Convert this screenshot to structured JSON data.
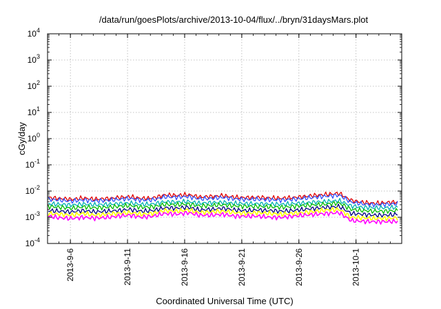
{
  "chart_data": {
    "type": "line",
    "title": "/data/run/goesPlots/archive/2013-10-04/flux/../bryn/31daysMars.plot",
    "xlabel": "Coordinated Universal Time (UTC)",
    "ylabel": "cGy/day",
    "y_scale": "log",
    "ylim": [
      0.0001,
      10000
    ],
    "y_ticks": [
      {
        "value": 0.0001,
        "base": "10",
        "exp": "-4"
      },
      {
        "value": 0.001,
        "base": "10",
        "exp": "-3"
      },
      {
        "value": 0.01,
        "base": "10",
        "exp": "-2"
      },
      {
        "value": 0.1,
        "base": "10",
        "exp": "-1"
      },
      {
        "value": 1,
        "base": "10",
        "exp": "0"
      },
      {
        "value": 10,
        "base": "10",
        "exp": "1"
      },
      {
        "value": 100,
        "base": "10",
        "exp": "2"
      },
      {
        "value": 1000,
        "base": "10",
        "exp": "3"
      },
      {
        "value": 10000,
        "base": "10",
        "exp": "4"
      }
    ],
    "xlim": [
      "2013-09-04",
      "2013-10-05"
    ],
    "x_ticks": [
      "2013-9-6",
      "2013-9-11",
      "2013-9-16",
      "2013-9-21",
      "2013-9-26",
      "2013-10-1"
    ],
    "grid": true,
    "series_colors": [
      "#e00000",
      "#3050ff",
      "#00b0b0",
      "#00bb00",
      "#000080",
      "#ffff00",
      "#ff00ff"
    ],
    "series": [
      {
        "color": "#e00000",
        "values": [
          0.0056,
          0.0052,
          0.0048,
          0.0054,
          0.0049,
          0.0051,
          0.0056,
          0.0061,
          0.0052,
          0.0054,
          0.0071,
          0.0068,
          0.0073,
          0.0059,
          0.0062,
          0.0067,
          0.0058,
          0.0056,
          0.0057,
          0.0055,
          0.0053,
          0.0056,
          0.0062,
          0.0069,
          0.0075,
          0.0082,
          0.0044,
          0.0037,
          0.0034,
          0.0036,
          0.0038
        ]
      },
      {
        "color": "#3050ff",
        "values": [
          0.0049,
          0.0045,
          0.0041,
          0.0046,
          0.0042,
          0.0044,
          0.0048,
          0.0052,
          0.0045,
          0.0046,
          0.006,
          0.0058,
          0.0062,
          0.005,
          0.0053,
          0.0057,
          0.005,
          0.0048,
          0.0049,
          0.0047,
          0.0045,
          0.0048,
          0.0053,
          0.0059,
          0.0064,
          0.007,
          0.0038,
          0.0032,
          0.003,
          0.0031,
          0.0033
        ]
      },
      {
        "color": "#00b0b0",
        "values": [
          0.0033,
          0.0031,
          0.0029,
          0.0032,
          0.003,
          0.0031,
          0.0033,
          0.0035,
          0.0031,
          0.0032,
          0.0039,
          0.0038,
          0.004,
          0.0034,
          0.0036,
          0.0037,
          0.0034,
          0.0033,
          0.0033,
          0.0032,
          0.0031,
          0.0033,
          0.0035,
          0.0038,
          0.004,
          0.0043,
          0.0027,
          0.0024,
          0.0023,
          0.0023,
          0.0024
        ]
      },
      {
        "color": "#00bb00",
        "values": [
          0.0026,
          0.0024,
          0.0022,
          0.0025,
          0.0023,
          0.0024,
          0.0026,
          0.0028,
          0.0024,
          0.0025,
          0.0031,
          0.003,
          0.0032,
          0.0027,
          0.0028,
          0.003,
          0.0027,
          0.0026,
          0.0026,
          0.0025,
          0.0024,
          0.0026,
          0.0028,
          0.003,
          0.0032,
          0.0035,
          0.002,
          0.0018,
          0.0017,
          0.0017,
          0.0018
        ]
      },
      {
        "color": "#000080",
        "values": [
          0.0018,
          0.0017,
          0.0016,
          0.0018,
          0.0016,
          0.0017,
          0.0018,
          0.002,
          0.0017,
          0.0018,
          0.0023,
          0.0022,
          0.0024,
          0.0019,
          0.002,
          0.0022,
          0.0019,
          0.0018,
          0.0019,
          0.0018,
          0.0017,
          0.0018,
          0.002,
          0.0022,
          0.0024,
          0.0026,
          0.0014,
          0.0013,
          0.0012,
          0.0012,
          0.0013
        ]
      },
      {
        "color": "#ffff00",
        "values": [
          0.0014,
          0.0013,
          0.0012,
          0.0014,
          0.0012,
          0.0013,
          0.0014,
          0.0015,
          0.0013,
          0.0014,
          0.0018,
          0.0017,
          0.0019,
          0.0015,
          0.0016,
          0.0017,
          0.0015,
          0.0014,
          0.0015,
          0.0014,
          0.0013,
          0.0014,
          0.0015,
          0.0017,
          0.0019,
          0.002,
          0.001,
          0.00095,
          0.0009,
          0.0009,
          0.00095
        ]
      },
      {
        "color": "#ff00ff",
        "values": [
          0.0011,
          0.00095,
          0.0009,
          0.001,
          0.00092,
          0.00098,
          0.0011,
          0.0012,
          0.001,
          0.0011,
          0.0014,
          0.0013,
          0.0015,
          0.0012,
          0.0012,
          0.0013,
          0.0011,
          0.0011,
          0.0011,
          0.001,
          0.00098,
          0.0011,
          0.0012,
          0.0013,
          0.0014,
          0.0015,
          0.00075,
          0.0007,
          0.00068,
          0.00068,
          0.0007
        ]
      }
    ]
  }
}
